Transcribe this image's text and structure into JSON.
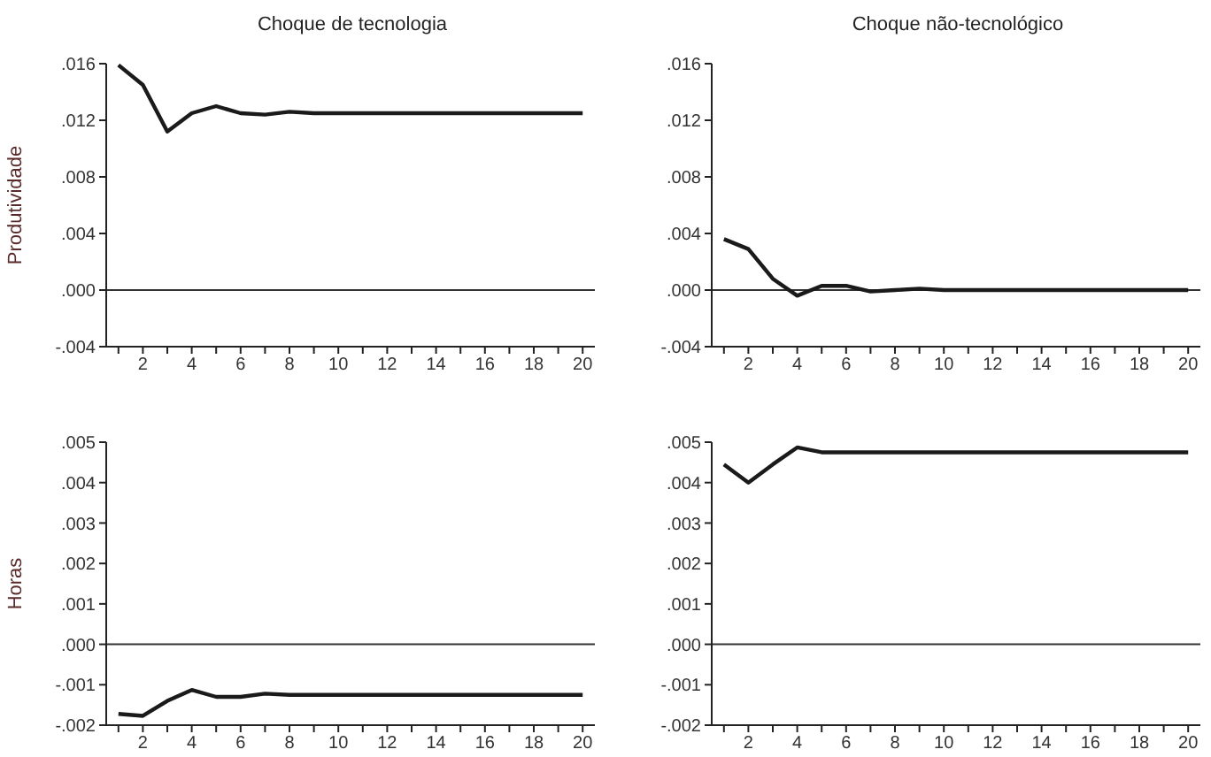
{
  "chart_data": [
    {
      "type": "line",
      "title": "Choque de tecnologia",
      "ylabel": "Produtividade",
      "x": [
        1,
        2,
        3,
        4,
        5,
        6,
        7,
        8,
        9,
        10,
        11,
        12,
        13,
        14,
        15,
        16,
        17,
        18,
        19,
        20
      ],
      "series": [
        {
          "color": "#1a1a1a",
          "values": [
            0.0159,
            0.0145,
            0.0112,
            0.0125,
            0.013,
            0.0125,
            0.0124,
            0.0126,
            0.0125,
            0.0125,
            0.0125,
            0.0125,
            0.0125,
            0.0125,
            0.0125,
            0.0125,
            0.0125,
            0.0125,
            0.0125,
            0.0125
          ]
        }
      ],
      "xlim": [
        0.5,
        20.5
      ],
      "xticks": [
        {
          "value": 1,
          "label": null
        },
        2,
        {
          "value": 3,
          "label": null
        },
        4,
        {
          "value": 5,
          "label": null
        },
        6,
        {
          "value": 7,
          "label": null
        },
        8,
        {
          "value": 9,
          "label": null
        },
        10,
        {
          "value": 11,
          "label": null
        },
        12,
        {
          "value": 13,
          "label": null
        },
        14,
        {
          "value": 15,
          "label": null
        },
        16,
        {
          "value": 17,
          "label": null
        },
        18,
        {
          "value": 19,
          "label": null
        },
        20
      ],
      "ylim": [
        -0.004,
        0.016
      ],
      "yticks": [
        {
          "value": -0.004,
          "label": "-.004"
        },
        {
          "value": 0,
          "label": ".000"
        },
        {
          "value": 0.004,
          "label": ".004"
        },
        {
          "value": 0.008,
          "label": ".008"
        },
        {
          "value": 0.012,
          "label": ".012"
        },
        {
          "value": 0.016,
          "label": ".016"
        }
      ],
      "ref_lines": [
        {
          "axis": "y",
          "value": 0,
          "color": "#333333"
        }
      ],
      "marker": "none",
      "line_style": "solid"
    },
    {
      "type": "line",
      "title": "Choque não-tecnológico",
      "x": [
        1,
        2,
        3,
        4,
        5,
        6,
        7,
        8,
        9,
        10,
        11,
        12,
        13,
        14,
        15,
        16,
        17,
        18,
        19,
        20
      ],
      "series": [
        {
          "color": "#1a1a1a",
          "values": [
            0.0036,
            0.0029,
            0.0008,
            -0.0004,
            0.0003,
            0.0003,
            -0.0001,
            0.0,
            0.0001,
            0.0,
            0.0,
            0.0,
            0.0,
            0.0,
            0.0,
            0.0,
            0.0,
            0.0,
            0.0,
            0.0
          ]
        }
      ],
      "xlim": [
        0.5,
        20.5
      ],
      "xticks": [
        {
          "value": 1,
          "label": null
        },
        2,
        {
          "value": 3,
          "label": null
        },
        4,
        {
          "value": 5,
          "label": null
        },
        6,
        {
          "value": 7,
          "label": null
        },
        8,
        {
          "value": 9,
          "label": null
        },
        10,
        {
          "value": 11,
          "label": null
        },
        12,
        {
          "value": 13,
          "label": null
        },
        14,
        {
          "value": 15,
          "label": null
        },
        16,
        {
          "value": 17,
          "label": null
        },
        18,
        {
          "value": 19,
          "label": null
        },
        20
      ],
      "ylim": [
        -0.004,
        0.016
      ],
      "yticks": [
        {
          "value": -0.004,
          "label": "-.004"
        },
        {
          "value": 0,
          "label": ".000"
        },
        {
          "value": 0.004,
          "label": ".004"
        },
        {
          "value": 0.008,
          "label": ".008"
        },
        {
          "value": 0.012,
          "label": ".012"
        },
        {
          "value": 0.016,
          "label": ".016"
        }
      ],
      "ref_lines": [
        {
          "axis": "y",
          "value": 0,
          "color": "#333333"
        }
      ],
      "marker": "none",
      "line_style": "solid"
    },
    {
      "type": "line",
      "ylabel": "Horas",
      "x": [
        1,
        2,
        3,
        4,
        5,
        6,
        7,
        8,
        9,
        10,
        11,
        12,
        13,
        14,
        15,
        16,
        17,
        18,
        19,
        20
      ],
      "series": [
        {
          "color": "#1a1a1a",
          "values": [
            -0.00172,
            -0.00177,
            -0.0014,
            -0.00113,
            -0.0013,
            -0.0013,
            -0.00122,
            -0.00125,
            -0.00125,
            -0.00125,
            -0.00125,
            -0.00125,
            -0.00125,
            -0.00125,
            -0.00125,
            -0.00125,
            -0.00125,
            -0.00125,
            -0.00125,
            -0.00125
          ]
        }
      ],
      "xlim": [
        0.5,
        20.5
      ],
      "xticks": [
        {
          "value": 1,
          "label": null
        },
        2,
        {
          "value": 3,
          "label": null
        },
        4,
        {
          "value": 5,
          "label": null
        },
        6,
        {
          "value": 7,
          "label": null
        },
        8,
        {
          "value": 9,
          "label": null
        },
        10,
        {
          "value": 11,
          "label": null
        },
        12,
        {
          "value": 13,
          "label": null
        },
        14,
        {
          "value": 15,
          "label": null
        },
        16,
        {
          "value": 17,
          "label": null
        },
        18,
        {
          "value": 19,
          "label": null
        },
        20
      ],
      "ylim": [
        -0.002,
        0.005
      ],
      "yticks": [
        {
          "value": -0.002,
          "label": "-.002"
        },
        {
          "value": -0.001,
          "label": "-.001"
        },
        {
          "value": 0,
          "label": ".000"
        },
        {
          "value": 0.001,
          "label": ".001"
        },
        {
          "value": 0.002,
          "label": ".002"
        },
        {
          "value": 0.003,
          "label": ".003"
        },
        {
          "value": 0.004,
          "label": ".004"
        },
        {
          "value": 0.005,
          "label": ".005"
        }
      ],
      "ref_lines": [
        {
          "axis": "y",
          "value": 0,
          "color": "#333333"
        }
      ],
      "marker": "none",
      "line_style": "solid"
    },
    {
      "type": "line",
      "x": [
        1,
        2,
        3,
        4,
        5,
        6,
        7,
        8,
        9,
        10,
        11,
        12,
        13,
        14,
        15,
        16,
        17,
        18,
        19,
        20
      ],
      "series": [
        {
          "color": "#1a1a1a",
          "values": [
            0.00445,
            0.004,
            0.00445,
            0.00487,
            0.00475,
            0.00475,
            0.00475,
            0.00475,
            0.00475,
            0.00475,
            0.00475,
            0.00475,
            0.00475,
            0.00475,
            0.00475,
            0.00475,
            0.00475,
            0.00475,
            0.00475,
            0.00475
          ]
        }
      ],
      "xlim": [
        0.5,
        20.5
      ],
      "xticks": [
        {
          "value": 1,
          "label": null
        },
        2,
        {
          "value": 3,
          "label": null
        },
        4,
        {
          "value": 5,
          "label": null
        },
        6,
        {
          "value": 7,
          "label": null
        },
        8,
        {
          "value": 9,
          "label": null
        },
        10,
        {
          "value": 11,
          "label": null
        },
        12,
        {
          "value": 13,
          "label": null
        },
        14,
        {
          "value": 15,
          "label": null
        },
        16,
        {
          "value": 17,
          "label": null
        },
        18,
        {
          "value": 19,
          "label": null
        },
        20
      ],
      "ylim": [
        -0.002,
        0.005
      ],
      "yticks": [
        {
          "value": -0.002,
          "label": "-.002"
        },
        {
          "value": -0.001,
          "label": "-.001"
        },
        {
          "value": 0,
          "label": ".000"
        },
        {
          "value": 0.001,
          "label": ".001"
        },
        {
          "value": 0.002,
          "label": ".002"
        },
        {
          "value": 0.003,
          "label": ".003"
        },
        {
          "value": 0.004,
          "label": ".004"
        },
        {
          "value": 0.005,
          "label": ".005"
        }
      ],
      "ref_lines": [
        {
          "axis": "y",
          "value": 0,
          "color": "#333333"
        }
      ],
      "marker": "none",
      "line_style": "solid"
    }
  ]
}
